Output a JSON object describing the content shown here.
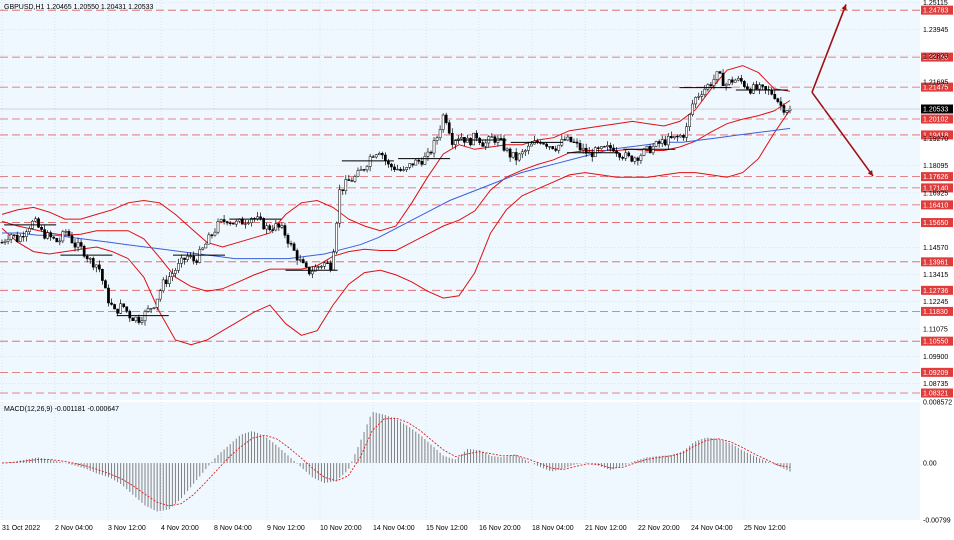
{
  "header": {
    "symbol_info": "GBPUSD,H1  1.20465 1.20550 1.20431 1.20533",
    "macd_info": "MACD(12,26,9) -0.001181 -0.000647"
  },
  "colors": {
    "background": "#f0f8ff",
    "grid": "#c8cdd8",
    "level_line": "#e05c5c",
    "level_label_bg": "#e03c3c",
    "price_label_bg": "#000000",
    "bollinger": "#e01010",
    "ma": "#3d5fd8",
    "candle": "#000000",
    "histogram": "#808080",
    "signal": "#e02020",
    "arrow": "#a01010"
  },
  "chart_data": [
    {
      "type": "candlestick",
      "title": "GBPUSD,H1",
      "ylim": [
        1.0802,
        1.2522
      ],
      "price_ticks": [
        1.25115,
        1.23945,
        1.2282,
        1.21695,
        1.1927,
        1.18095,
        1.16925,
        1.1457,
        1.13415,
        1.12245,
        1.11075,
        1.099,
        1.08735
      ],
      "level_lines": [
        1.24783,
        1.22765,
        1.21475,
        1.20102,
        1.19418,
        1.17626,
        1.1714,
        1.1641,
        1.1565,
        1.13961,
        1.12736,
        1.1183,
        1.1055,
        1.09209,
        1.08321
      ],
      "current_price": 1.20533,
      "x_labels": [
        "31 Oct 2022",
        "2 Nov 04:00",
        "3 Nov 12:00",
        "4 Nov 20:00",
        "8 Nov 04:00",
        "9 Nov 12:00",
        "10 Nov 20:00",
        "14 Nov 04:00",
        "15 Nov 12:00",
        "16 Nov 20:00",
        "18 Nov 04:00",
        "21 Nov 12:00",
        "22 Nov 20:00",
        "24 Nov 04:00",
        "25 Nov 12:00"
      ],
      "last_candle": {
        "open": 1.20465,
        "high": 1.2055,
        "low": 1.20431,
        "close": 1.20533
      },
      "price_path": [
        1.148,
        1.152,
        1.149,
        1.154,
        1.157,
        1.152,
        1.15,
        1.148,
        1.153,
        1.147,
        1.145,
        1.14,
        1.138,
        1.125,
        1.118,
        1.121,
        1.116,
        1.115,
        1.118,
        1.122,
        1.13,
        1.134,
        1.138,
        1.142,
        1.14,
        1.145,
        1.151,
        1.156,
        1.158,
        1.156,
        1.157,
        1.159,
        1.157,
        1.154,
        1.155,
        1.153,
        1.146,
        1.14,
        1.135,
        1.137,
        1.139,
        1.138,
        1.17,
        1.174,
        1.176,
        1.18,
        1.186,
        1.188,
        1.181,
        1.18,
        1.178,
        1.182,
        1.183,
        1.185,
        1.192,
        1.204,
        1.192,
        1.194,
        1.191,
        1.194,
        1.19,
        1.193,
        1.191,
        1.186,
        1.184,
        1.187,
        1.19,
        1.192,
        1.19,
        1.189,
        1.192,
        1.191,
        1.188,
        1.186,
        1.187,
        1.188,
        1.189,
        1.186,
        1.184,
        1.185,
        1.187,
        1.189,
        1.191,
        1.192,
        1.193,
        1.195,
        1.209,
        1.213,
        1.216,
        1.22,
        1.216,
        1.218,
        1.217,
        1.214,
        1.214,
        1.213,
        1.212,
        1.206,
        1.2053
      ],
      "bb_upper": [
        1.16,
        1.162,
        1.163,
        1.161,
        1.158,
        1.158,
        1.16,
        1.162,
        1.165,
        1.166,
        1.165,
        1.16,
        1.154,
        1.148,
        1.146,
        1.148,
        1.15,
        1.152,
        1.16,
        1.165,
        1.166,
        1.163,
        1.158,
        1.155,
        1.153,
        1.155,
        1.165,
        1.176,
        1.186,
        1.19,
        1.188,
        1.189,
        1.19,
        1.19,
        1.192,
        1.193,
        1.196,
        1.197,
        1.198,
        1.199,
        1.2,
        1.199,
        1.198,
        1.2,
        1.205,
        1.214,
        1.222,
        1.224,
        1.221,
        1.214,
        1.213
      ],
      "bb_lower": [
        1.154,
        1.148,
        1.144,
        1.143,
        1.144,
        1.145,
        1.146,
        1.144,
        1.141,
        1.133,
        1.118,
        1.106,
        1.104,
        1.106,
        1.11,
        1.114,
        1.118,
        1.121,
        1.113,
        1.108,
        1.11,
        1.121,
        1.13,
        1.135,
        1.136,
        1.134,
        1.131,
        1.127,
        1.124,
        1.125,
        1.135,
        1.152,
        1.162,
        1.168,
        1.171,
        1.174,
        1.177,
        1.178,
        1.177,
        1.176,
        1.176,
        1.176,
        1.177,
        1.178,
        1.178,
        1.177,
        1.176,
        1.178,
        1.184,
        1.195,
        1.205
      ],
      "ma": [
        1.152,
        1.152,
        1.151,
        1.151,
        1.15,
        1.149,
        1.148,
        1.147,
        1.146,
        1.145,
        1.144,
        1.143,
        1.142,
        1.141,
        1.141,
        1.141,
        1.141,
        1.142,
        1.143,
        1.145,
        1.147,
        1.15,
        1.154,
        1.158,
        1.162,
        1.166,
        1.169,
        1.172,
        1.175,
        1.178,
        1.18,
        1.182,
        1.184,
        1.186,
        1.188,
        1.189,
        1.19,
        1.191,
        1.191,
        1.192,
        1.193,
        1.194,
        1.195,
        1.196,
        1.197
      ],
      "arrows": [
        {
          "from": [
            1.2125,
            "25 Nov 12:00+"
          ],
          "to": [
            1.2503,
            "up"
          ]
        },
        {
          "from": [
            1.2125,
            "25 Nov 12:00+"
          ],
          "to": [
            1.1765,
            "down"
          ]
        }
      ]
    },
    {
      "type": "bar",
      "title": "MACD(12,26,9)",
      "values_label": "-0.001181 -0.000647",
      "ylim": [
        -0.00799,
        0.00857
      ],
      "y_ticks": [
        0.008572,
        0.0,
        -0.00799
      ],
      "y_tick_labels": [
        "0.008572",
        "0.00",
        "-0.00799"
      ],
      "histogram_path": [
        0.0,
        0.0002,
        0.0005,
        0.0008,
        0.0005,
        0.0001,
        -0.0003,
        -0.0008,
        -0.0015,
        -0.002,
        -0.003,
        -0.0045,
        -0.006,
        -0.0068,
        -0.0065,
        -0.005,
        -0.003,
        -0.001,
        0.001,
        0.0025,
        0.004,
        0.0045,
        0.0038,
        0.0025,
        0.001,
        -0.0005,
        -0.002,
        -0.0028,
        -0.0025,
        -0.001,
        0.003,
        0.0072,
        0.0068,
        0.0062,
        0.0052,
        0.004,
        0.0025,
        0.001,
        0.0005,
        0.002,
        0.0018,
        0.001,
        0.0008,
        0.0012,
        0.0003,
        -0.0005,
        -0.0012,
        -0.0008,
        -0.0002,
        0.0001,
        -0.0004,
        -0.001,
        -0.0004,
        0.0003,
        0.0008,
        0.001,
        0.0011,
        0.0016,
        0.003,
        0.0036,
        0.0034,
        0.0028,
        0.0018,
        0.001,
        0.0003,
        -0.0004,
        -0.0012
      ],
      "signal_path": [
        0.0,
        0.0001,
        0.0003,
        0.0005,
        0.0005,
        0.0003,
        0.0,
        -0.0004,
        -0.0009,
        -0.0015,
        -0.0022,
        -0.0032,
        -0.0044,
        -0.0055,
        -0.006,
        -0.0057,
        -0.0045,
        -0.0028,
        -0.001,
        0.0008,
        0.0023,
        0.0035,
        0.0039,
        0.0034,
        0.0022,
        0.0008,
        -0.0007,
        -0.002,
        -0.0025,
        -0.0018,
        0.0008,
        0.0045,
        0.0062,
        0.0063,
        0.0057,
        0.0046,
        0.0032,
        0.0018,
        0.0009,
        0.0013,
        0.0016,
        0.0013,
        0.001,
        0.0011,
        0.0006,
        0.0,
        -0.0007,
        -0.0009,
        -0.0005,
        -0.0001,
        -0.0002,
        -0.0007,
        -0.0006,
        0.0,
        0.0005,
        0.0008,
        0.001,
        0.0014,
        0.0024,
        0.0032,
        0.0034,
        0.003,
        0.0022,
        0.0013,
        0.0005,
        -0.0003,
        -0.0006
      ]
    }
  ]
}
